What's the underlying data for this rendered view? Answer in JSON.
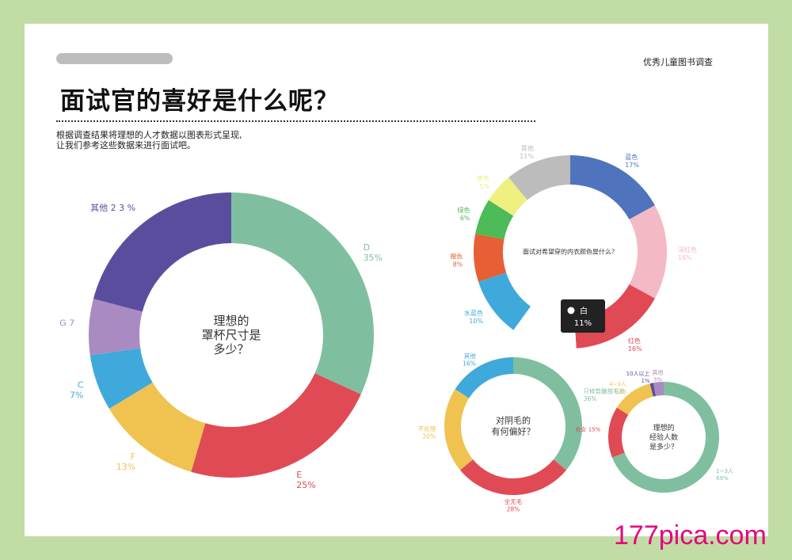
{
  "header": {
    "tag": "优秀儿童图书调查",
    "title": "面试官的喜好是什么呢？",
    "intro_line1": "根据调查结果将理想的人才数据以图表形式呈现,",
    "intro_line2": "让我们参考这些数据来进行面试吧。"
  },
  "tooltip": {
    "label": "白",
    "value": "11%"
  },
  "watermark": "177pica.com",
  "colors": {
    "green": "#7fbf9f",
    "red": "#e04a55",
    "yellow": "#f0c24f",
    "blue": "#3fa9dc",
    "lavender": "#a98bc2",
    "purple": "#5b4d9e",
    "navy": "#4f74bd",
    "pink": "#f3b9c4",
    "orange": "#e75f34",
    "grass": "#4dbb57",
    "lime": "#eef07f",
    "grey": "#bcbcbc"
  },
  "chart_data": [
    {
      "type": "pie",
      "title": "理想的罩杯尺寸是多少？",
      "slices": [
        {
          "name": "D",
          "value": 35,
          "color": "#7fbf9f",
          "label": "D",
          "pct": "35%"
        },
        {
          "name": "E",
          "value": 25,
          "color": "#e04a55",
          "label": "E",
          "pct": "25%"
        },
        {
          "name": "F",
          "value": 13,
          "color": "#f0c24f",
          "label": "F",
          "pct": "13%"
        },
        {
          "name": "C",
          "value": 7,
          "color": "#3fa9dc",
          "label": "C",
          "pct": "7%"
        },
        {
          "name": "G",
          "value": 7,
          "color": "#a98bc2",
          "label": "G 7",
          "pct": ""
        },
        {
          "name": "其他",
          "value": 23,
          "color": "#5b4d9e",
          "label": "其他 2 3 %",
          "pct": ""
        }
      ]
    },
    {
      "type": "pie",
      "title": "面试对希望穿的内衣颜色是什么？",
      "slices": [
        {
          "name": "蓝色",
          "value": 17,
          "color": "#4f74bd",
          "label": "蓝色",
          "pct": "17%"
        },
        {
          "name": "深红色",
          "value": 16,
          "color": "#f3b9c4",
          "label": "深红色",
          "pct": "16%"
        },
        {
          "name": "红色",
          "value": 16,
          "color": "#e04a55",
          "label": "红色",
          "pct": "16%"
        },
        {
          "name": "白",
          "value": 11,
          "color": "#ffffff",
          "label": "",
          "pct": ""
        },
        {
          "name": "水蓝色",
          "value": 10,
          "color": "#3fa9dc",
          "label": "水蓝色",
          "pct": "10%"
        },
        {
          "name": "橙色",
          "value": 8,
          "color": "#e75f34",
          "label": "橙色",
          "pct": "8%"
        },
        {
          "name": "绿色",
          "value": 6,
          "color": "#4dbb57",
          "label": "绿色",
          "pct": "6%"
        },
        {
          "name": "黄色",
          "value": 5,
          "color": "#eef07f",
          "label": "黄色",
          "pct": "5%"
        },
        {
          "name": "其他",
          "value": 11,
          "color": "#bcbcbc",
          "label": "其他",
          "pct": "11%"
        }
      ]
    },
    {
      "type": "pie",
      "title": "对阴毛的有何偏好？",
      "slices": [
        {
          "name": "只修剪腹部毛发",
          "value": 36,
          "color": "#7fbf9f",
          "label": "只修剪腹部毛发",
          "pct": "36%"
        },
        {
          "name": "全无毛",
          "value": 28,
          "color": "#e04a55",
          "label": "全无毛",
          "pct": "28%"
        },
        {
          "name": "不处理",
          "value": 20,
          "color": "#f0c24f",
          "label": "不处理",
          "pct": "20%"
        },
        {
          "name": "其他",
          "value": 16,
          "color": "#3fa9dc",
          "label": "其他",
          "pct": "16%"
        }
      ]
    },
    {
      "type": "pie",
      "title": "理想的经验人数是多少？",
      "slices": [
        {
          "name": "1~3人",
          "value": 69,
          "color": "#7fbf9f",
          "label": "1~3人",
          "pct": "69%"
        },
        {
          "name": "处女",
          "value": 15,
          "color": "#e04a55",
          "label": "处女 15%",
          "pct": ""
        },
        {
          "name": "4~9人",
          "value": 12,
          "color": "#f0c24f",
          "label": "4~9人",
          "pct": "12%"
        },
        {
          "name": "10人以上",
          "value": 1,
          "color": "#5b4d9e",
          "label": "10人以上",
          "pct": "1%"
        },
        {
          "name": "其他",
          "value": 3,
          "color": "#a98bc2",
          "label": "其他",
          "pct": "3%"
        }
      ]
    }
  ]
}
